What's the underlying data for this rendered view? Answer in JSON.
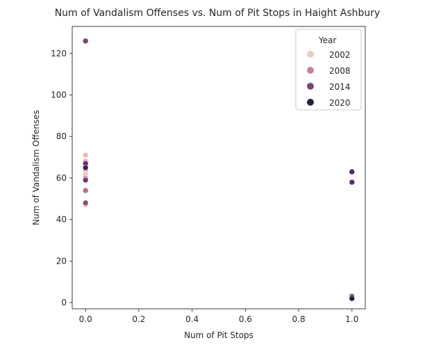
{
  "chart_data": {
    "type": "scatter",
    "title": "Num of Vandalism Offenses vs. Num of Pit Stops in Haight Ashbury",
    "xlabel": "Num of Pit Stops",
    "ylabel": "Num of Vandalism Offenses",
    "xlim": [
      -0.05,
      1.05
    ],
    "ylim": [
      -3,
      133
    ],
    "xticks": [
      0.0,
      0.2,
      0.4,
      0.6,
      0.8,
      1.0
    ],
    "xtick_labels": [
      "0.0",
      "0.2",
      "0.4",
      "0.6",
      "0.8",
      "1.0"
    ],
    "yticks": [
      0,
      20,
      40,
      60,
      80,
      100,
      120
    ],
    "ytick_labels": [
      "0",
      "20",
      "40",
      "60",
      "80",
      "100",
      "120"
    ],
    "grid": false,
    "legend": {
      "title": "Year",
      "placement": "top-right",
      "entries": [
        {
          "label": "2002",
          "color": "#efc9c0"
        },
        {
          "label": "2008",
          "color": "#c58296"
        },
        {
          "label": "2014",
          "color": "#7d4376"
        },
        {
          "label": "2020",
          "color": "#2b1c40"
        }
      ]
    },
    "points": [
      {
        "x": 0.0,
        "y": 71,
        "color": "#eab8b0"
      },
      {
        "x": 0.0,
        "y": 68,
        "color": "#e6b0ab"
      },
      {
        "x": 0.0,
        "y": 64,
        "color": "#dfa1a3"
      },
      {
        "x": 0.0,
        "y": 62,
        "color": "#efc9c0"
      },
      {
        "x": 0.0,
        "y": 60,
        "color": "#d8939c"
      },
      {
        "x": 0.0,
        "y": 47,
        "color": "#efc9c0"
      },
      {
        "x": 0.0,
        "y": 54,
        "color": "#b06c8f"
      },
      {
        "x": 0.0,
        "y": 48,
        "color": "#8a4b7e"
      },
      {
        "x": 0.0,
        "y": 59,
        "color": "#6c3a72"
      },
      {
        "x": 0.0,
        "y": 67,
        "color": "#5c3268"
      },
      {
        "x": 0.0,
        "y": 65,
        "color": "#3d2550"
      },
      {
        "x": 0.0,
        "y": 126,
        "color": "#7d4376"
      },
      {
        "x": 1.0,
        "y": 63,
        "color": "#4a2a5a"
      },
      {
        "x": 1.0,
        "y": 58,
        "color": "#5a3066"
      },
      {
        "x": 1.0,
        "y": 3,
        "color": "#6a3a72"
      },
      {
        "x": 1.0,
        "y": 2,
        "color": "#2b1c40"
      }
    ]
  }
}
